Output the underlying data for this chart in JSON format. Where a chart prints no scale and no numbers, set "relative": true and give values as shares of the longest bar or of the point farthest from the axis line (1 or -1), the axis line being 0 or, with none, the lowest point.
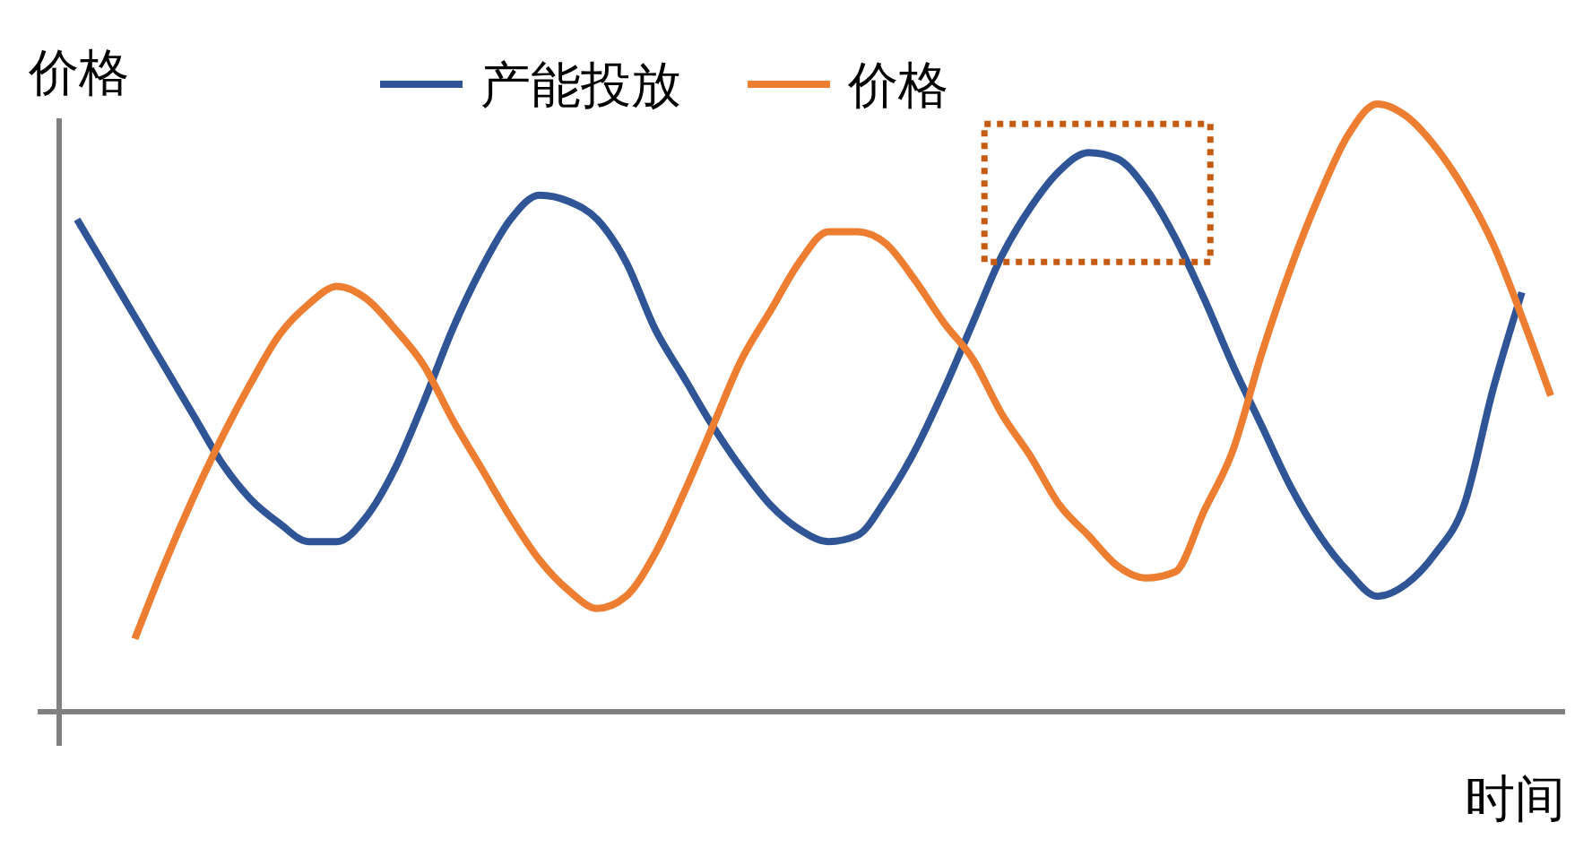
{
  "chart_data": {
    "type": "line",
    "relative": true,
    "ylabel": "价格",
    "xlabel": "时间",
    "legend": "top",
    "categories": [
      null,
      null,
      null,
      null,
      null,
      null,
      null,
      null,
      null,
      null,
      null,
      null,
      null,
      null,
      null,
      null,
      null,
      null,
      null,
      null,
      null,
      null,
      null,
      null,
      null,
      null,
      null,
      null,
      null,
      null,
      null,
      null,
      null,
      null,
      null,
      null,
      null,
      null,
      null,
      null,
      null,
      null,
      null,
      null,
      null,
      null,
      null,
      null,
      null,
      null,
      null,
      null
    ],
    "series": [
      {
        "name": "产能投放",
        "color": "#2f5597",
        "values": [
          0.81,
          0.73,
          0.65,
          0.57,
          0.49,
          0.41,
          0.35,
          0.31,
          0.28,
          0.28,
          0.32,
          0.4,
          0.51,
          0.63,
          0.73,
          0.81,
          0.85,
          0.84,
          0.81,
          0.74,
          0.63,
          0.55,
          0.47,
          0.4,
          0.34,
          0.3,
          0.28,
          0.29,
          0.35,
          0.43,
          0.53,
          0.64,
          0.75,
          0.83,
          0.89,
          0.92,
          0.91,
          0.86,
          0.78,
          0.68,
          0.57,
          0.47,
          0.37,
          0.29,
          0.23,
          0.19,
          0.21,
          0.26,
          0.34,
          0.53,
          0.69,
          null
        ]
      },
      {
        "name": "价格",
        "color": "#ed7d31",
        "values": [
          null,
          null,
          0.12,
          0.24,
          0.35,
          0.45,
          0.54,
          0.62,
          0.67,
          0.7,
          0.68,
          0.63,
          0.57,
          0.48,
          0.4,
          0.32,
          0.25,
          0.2,
          0.17,
          0.19,
          0.26,
          0.36,
          0.47,
          0.58,
          0.66,
          0.74,
          0.79,
          0.79,
          0.77,
          0.71,
          0.64,
          0.58,
          0.49,
          0.42,
          0.34,
          0.29,
          0.24,
          0.22,
          0.23,
          0.33,
          0.43,
          0.59,
          0.73,
          0.85,
          0.95,
          1,
          0.98,
          0.93,
          0.86,
          0.77,
          0.65,
          0.52
        ]
      }
    ]
  }
}
